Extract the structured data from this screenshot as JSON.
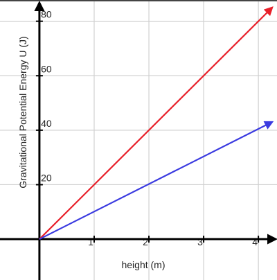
{
  "chart_data": {
    "type": "line",
    "x_label": "height (m)",
    "y_label": "Gravitational Potential Energy U (J)",
    "x": [
      0,
      4.25
    ],
    "series": [
      {
        "color": "#e8202a",
        "values": [
          0,
          85
        ]
      },
      {
        "color": "#3a3ae0",
        "values": [
          0,
          43
        ]
      }
    ],
    "xlim": [
      -0.72,
      4.34
    ],
    "ylim": [
      -15,
      87.8
    ],
    "xticks": [
      1,
      2,
      3,
      4
    ],
    "yticks": [
      20,
      40,
      60,
      80
    ],
    "grid": true
  }
}
